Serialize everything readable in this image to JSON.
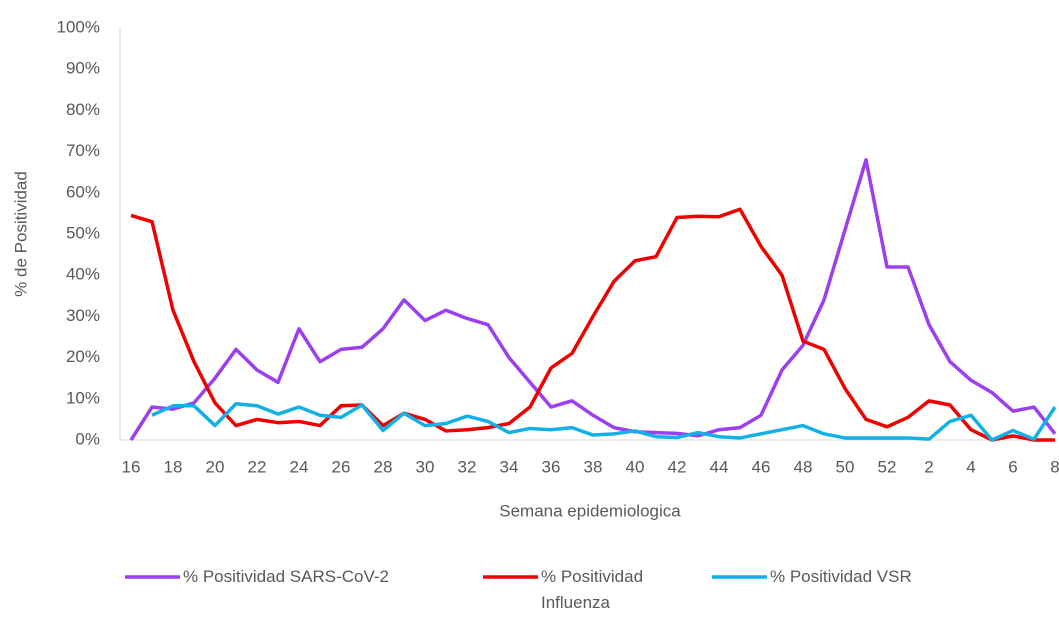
{
  "chart_data": {
    "type": "line",
    "x_label": "Semana epidemiologica",
    "y_label": "% de Positividad",
    "categories": [
      "16",
      null,
      "18",
      null,
      "20",
      null,
      "22",
      null,
      "24",
      null,
      "26",
      null,
      "28",
      null,
      "30",
      null,
      "32",
      null,
      "34",
      null,
      "36",
      null,
      "38",
      null,
      "40",
      null,
      "42",
      null,
      "44",
      null,
      "46",
      null,
      "48",
      null,
      "50",
      null,
      "52",
      null,
      "2",
      null,
      "4",
      null,
      "6",
      null,
      "8"
    ],
    "ylim": [
      0,
      100
    ],
    "yticks": [
      {
        "value": 0,
        "label": "0%"
      },
      {
        "value": 10,
        "label": "10%"
      },
      {
        "value": 20,
        "label": "20%"
      },
      {
        "value": 30,
        "label": "30%"
      },
      {
        "value": 40,
        "label": "40%"
      },
      {
        "value": 50,
        "label": "50%"
      },
      {
        "value": 60,
        "label": "60%"
      },
      {
        "value": 70,
        "label": "70%"
      },
      {
        "value": 80,
        "label": "80%"
      },
      {
        "value": 90,
        "label": "90%"
      },
      {
        "value": 100,
        "label": "100%"
      }
    ],
    "grid": false,
    "series": [
      {
        "name": "% Positividad SARS-CoV-2",
        "color": "#9b3ff0",
        "values": [
          0,
          8,
          7.5,
          9,
          15,
          22,
          17,
          14,
          27,
          19,
          22,
          22.5,
          27,
          34,
          29,
          31.5,
          29.5,
          28,
          20,
          14,
          8,
          9.5,
          6,
          3,
          2,
          1.8,
          1.6,
          1,
          2.5,
          3,
          6,
          17,
          23,
          34,
          51,
          68,
          42,
          42,
          28,
          19,
          14.5,
          11.5,
          7,
          8,
          1.5
        ]
      },
      {
        "name": "% Positividad Influenza",
        "color": "#ee0000",
        "values": [
          54.5,
          53,
          31.5,
          19,
          9,
          3.5,
          5,
          4.2,
          4.5,
          3.5,
          8.3,
          8.5,
          3.5,
          6.5,
          5,
          2.2,
          2.5,
          3,
          4,
          8,
          17.5,
          21,
          30,
          38.5,
          43.5,
          44.5,
          54,
          54.3,
          54.2,
          56,
          47,
          40,
          24,
          22,
          12.5,
          5,
          3.2,
          5.5,
          9.5,
          8.5,
          2.5,
          0,
          1,
          0,
          0
        ]
      },
      {
        "name": "% Positividad VSR",
        "color": "#12b0e6",
        "values": [
          null,
          6,
          8.3,
          8.3,
          3.5,
          8.8,
          8.3,
          6.3,
          8,
          6,
          5.5,
          8.5,
          2.3,
          6.5,
          3.5,
          4,
          5.8,
          4.5,
          1.8,
          2.8,
          2.5,
          3,
          1.2,
          1.5,
          2.2,
          0.8,
          0.6,
          1.8,
          0.8,
          0.5,
          1.5,
          2.5,
          3.5,
          1.5,
          0.5,
          0.5,
          0.5,
          0.5,
          0.2,
          4.5,
          6,
          0,
          2.3,
          0.2,
          8
        ]
      }
    ]
  }
}
